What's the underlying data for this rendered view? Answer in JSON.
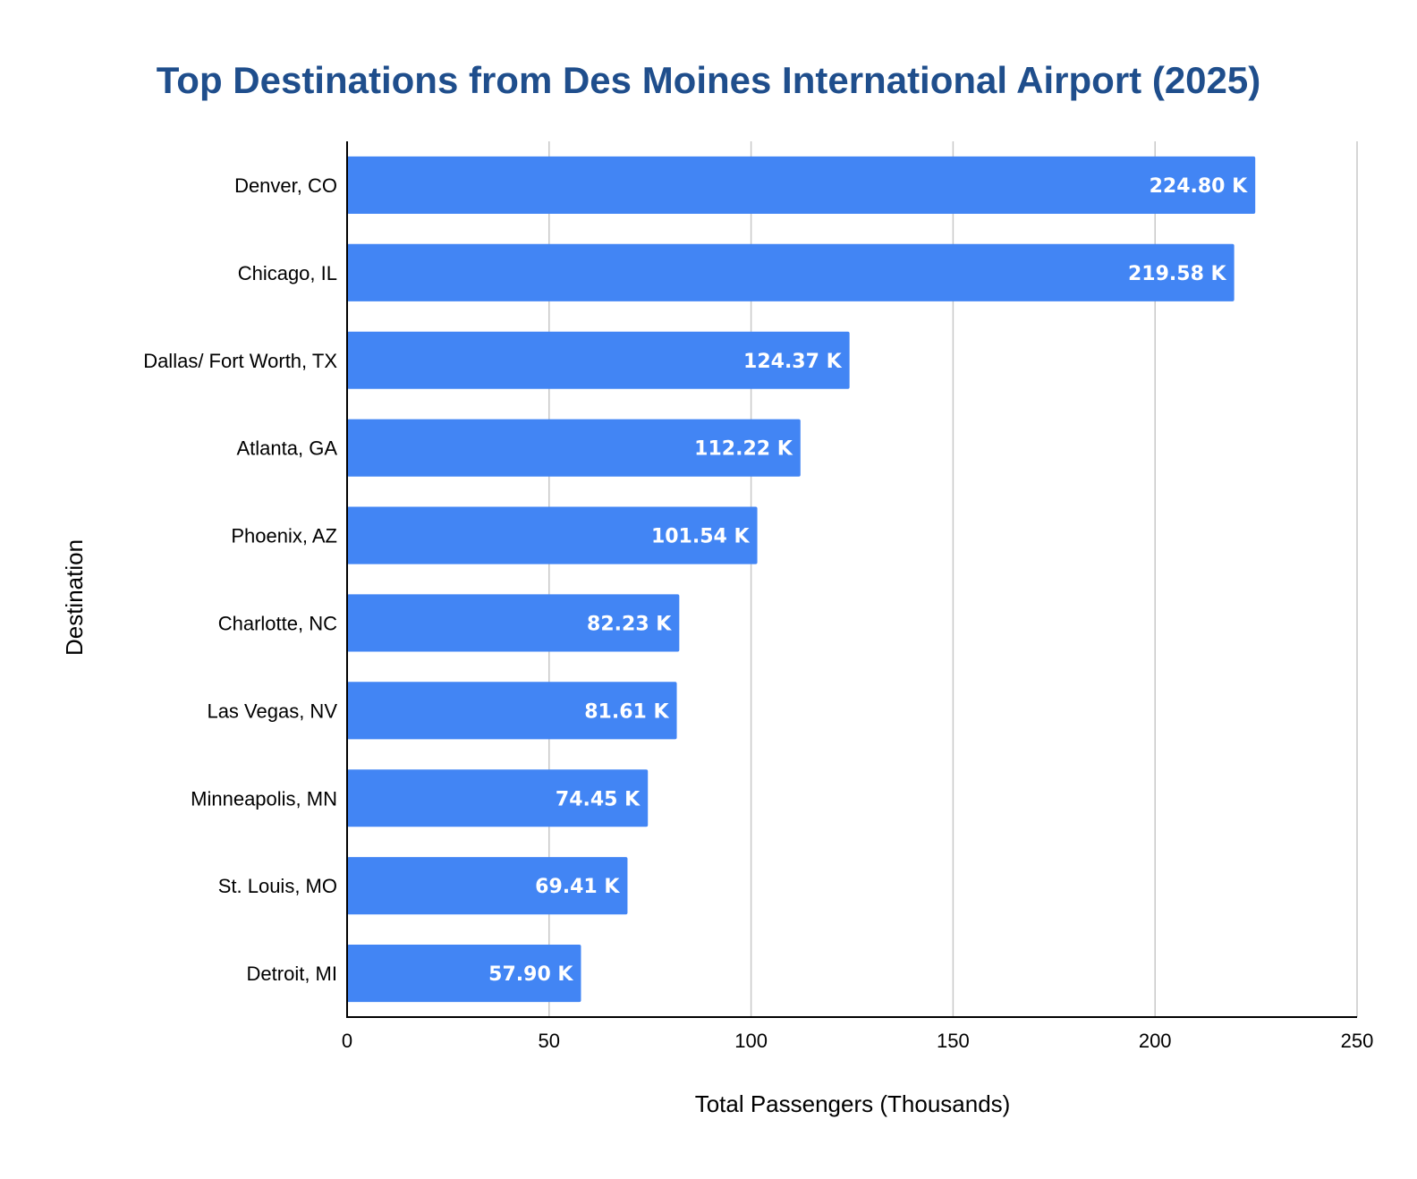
{
  "chart_data": {
    "type": "bar",
    "orientation": "horizontal",
    "title": "Top Destinations from Des Moines International Airport (2025)",
    "xlabel": "Total Passengers (Thousands)",
    "ylabel": "Destination",
    "xlim": [
      0,
      250
    ],
    "xticks": [
      0,
      50,
      100,
      150,
      200,
      250
    ],
    "grid": "vertical",
    "bar_color": "#4285f4",
    "categories": [
      "Denver, CO",
      "Chicago, IL",
      "Dallas/ Fort Worth, TX",
      "Atlanta, GA",
      "Phoenix, AZ",
      "Charlotte, NC",
      "Las Vegas, NV",
      "Minneapolis, MN",
      "St. Louis, MO",
      "Detroit, MI"
    ],
    "values": [
      224.8,
      219.58,
      124.37,
      112.22,
      101.54,
      82.23,
      81.61,
      74.45,
      69.41,
      57.9
    ],
    "data_labels": [
      "224.80 K",
      "219.58 K",
      "124.37 K",
      "112.22 K",
      "101.54 K",
      "82.23 K",
      "81.61 K",
      "74.45 K",
      "69.41 K",
      "57.90 K"
    ]
  }
}
